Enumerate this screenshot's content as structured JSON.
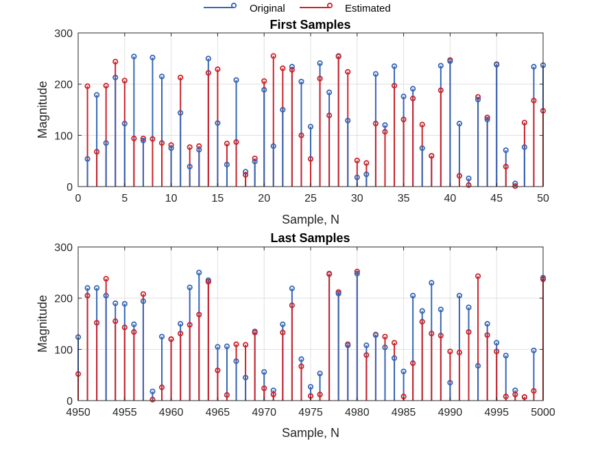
{
  "legend": {
    "placement": "top-center",
    "entries": [
      "Original",
      "Estimated"
    ]
  },
  "colors": {
    "original": "#3565b5",
    "estimated": "#cc2229"
  },
  "chart_data": [
    {
      "type": "stem",
      "title": "First Samples",
      "xlabel": "Sample, N",
      "ylabel": "Magnitude",
      "xlim": [
        0,
        50
      ],
      "ylim": [
        0,
        300
      ],
      "xticks": [
        0,
        5,
        10,
        15,
        20,
        25,
        30,
        35,
        40,
        45,
        50
      ],
      "yticks": [
        0,
        100,
        200,
        300
      ],
      "grid": true,
      "x": [
        1,
        2,
        3,
        4,
        5,
        6,
        7,
        8,
        9,
        10,
        11,
        12,
        13,
        14,
        15,
        16,
        17,
        18,
        19,
        20,
        21,
        22,
        23,
        24,
        25,
        26,
        27,
        28,
        29,
        30,
        31,
        32,
        33,
        34,
        35,
        36,
        37,
        38,
        39,
        40,
        41,
        42,
        43,
        44,
        45,
        46,
        47,
        48,
        49,
        50
      ],
      "series": [
        {
          "name": "Original",
          "values": [
            54,
            179,
            85,
            213,
            123,
            254,
            90,
            252,
            215,
            75,
            144,
            39,
            72,
            250,
            124,
            43,
            208,
            29,
            49,
            189,
            79,
            150,
            234,
            205,
            117,
            241,
            184,
            255,
            129,
            18,
            24,
            220,
            120,
            235,
            176,
            191,
            75,
            60,
            236,
            245,
            123,
            16,
            170,
            131,
            238,
            71,
            6,
            77,
            234,
            237
          ]
        },
        {
          "name": "Estimated",
          "values": [
            196,
            68,
            197,
            244,
            207,
            94,
            94,
            93,
            85,
            81,
            213,
            77,
            79,
            222,
            229,
            84,
            87,
            23,
            55,
            206,
            255,
            231,
            228,
            100,
            54,
            211,
            139,
            254,
            224,
            51,
            46,
            123,
            107,
            197,
            131,
            172,
            121,
            60,
            188,
            247,
            21,
            3,
            175,
            135,
            239,
            39,
            1,
            125,
            168,
            148
          ]
        }
      ]
    },
    {
      "type": "stem",
      "title": "Last Samples",
      "xlabel": "Sample, N",
      "ylabel": "Magnitude",
      "xlim": [
        4950,
        5000
      ],
      "ylim": [
        0,
        300
      ],
      "xticks": [
        4950,
        4955,
        4960,
        4965,
        4970,
        4975,
        4980,
        4985,
        4990,
        4995,
        5000
      ],
      "yticks": [
        0,
        100,
        200,
        300
      ],
      "grid": true,
      "x": [
        4950,
        4951,
        4952,
        4953,
        4954,
        4955,
        4956,
        4957,
        4958,
        4959,
        4960,
        4961,
        4962,
        4963,
        4964,
        4965,
        4966,
        4967,
        4968,
        4969,
        4970,
        4971,
        4972,
        4973,
        4974,
        4975,
        4976,
        4977,
        4978,
        4979,
        4980,
        4981,
        4982,
        4983,
        4984,
        4985,
        4986,
        4987,
        4988,
        4989,
        4990,
        4991,
        4992,
        4993,
        4994,
        4995,
        4996,
        4997,
        4998,
        4999,
        5000
      ],
      "series": [
        {
          "name": "Original",
          "values": [
            124,
            220,
            220,
            205,
            190,
            189,
            149,
            194,
            18,
            125,
            120,
            150,
            221,
            250,
            235,
            105,
            106,
            77,
            45,
            135,
            56,
            20,
            149,
            219,
            81,
            27,
            53,
            248,
            209,
            108,
            248,
            108,
            128,
            104,
            83,
            57,
            205,
            175,
            230,
            178,
            35,
            205,
            182,
            68,
            150,
            113,
            88,
            20,
            7,
            98,
            240
          ]
        },
        {
          "name": "Estimated",
          "values": [
            52,
            205,
            152,
            238,
            155,
            143,
            134,
            208,
            2,
            26,
            120,
            131,
            148,
            168,
            232,
            59,
            11,
            110,
            109,
            133,
            24,
            12,
            133,
            186,
            67,
            9,
            12,
            247,
            212,
            110,
            252,
            89,
            129,
            125,
            113,
            8,
            73,
            154,
            131,
            127,
            96,
            94,
            134,
            243,
            128,
            96,
            8,
            12,
            7,
            19,
            237
          ]
        }
      ]
    }
  ]
}
